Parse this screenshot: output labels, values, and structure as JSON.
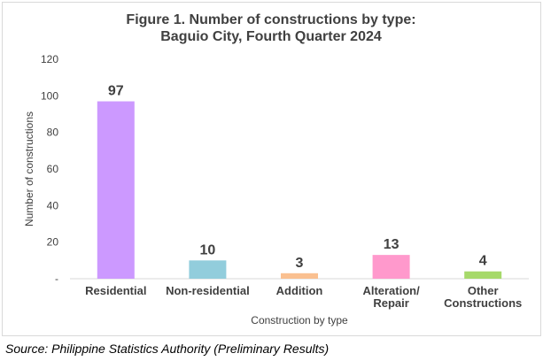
{
  "chart_data": {
    "type": "bar",
    "title": [
      "Figure 1. Number of constructions by type:",
      "Baguio City, Fourth Quarter 2024"
    ],
    "categories": [
      [
        "Residential"
      ],
      [
        "Non-residential"
      ],
      [
        "Addition"
      ],
      [
        "Alteration/",
        "Repair"
      ],
      [
        "Other",
        "Constructions"
      ]
    ],
    "values": [
      97,
      10,
      3,
      13,
      4
    ],
    "data_labels": [
      "97",
      "10",
      "3",
      "13",
      "4"
    ],
    "colors": [
      "#cc99ff",
      "#92cddc",
      "#fac090",
      "#ff99cc",
      "#a6d96a"
    ],
    "xlabel": "Construction by type",
    "ylabel": "Number of constructions",
    "ylim": [
      0,
      120
    ],
    "yticks": [
      0,
      20,
      40,
      60,
      80,
      100,
      120
    ],
    "ytick_labels": [
      "-",
      "20",
      "40",
      "60",
      "80",
      "100",
      "120"
    ],
    "grid": false,
    "legend": "none"
  },
  "source": "Source: Philippine Statistics Authority (Preliminary Results)"
}
